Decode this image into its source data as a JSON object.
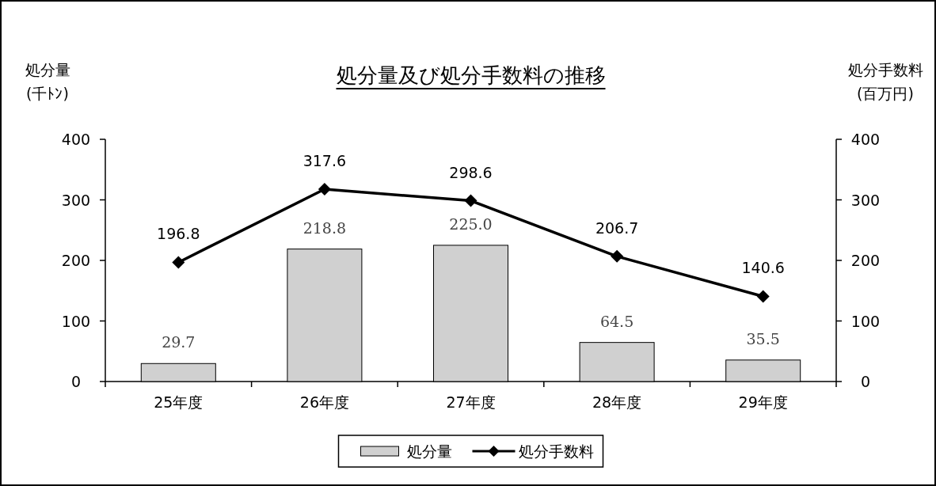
{
  "chart_data": {
    "type": "bar",
    "title": "処分量及び処分手数料の推移",
    "ylabel": "処分量(千ﾄﾝ)",
    "y2label": "処分手数料(百万円)",
    "categories": [
      "25年度",
      "26年度",
      "27年度",
      "28年度",
      "29年度"
    ],
    "series": [
      {
        "name": "処分量",
        "color": "#d0d0d0",
        "values": [
          29.7,
          218.8,
          225.0,
          64.5,
          35.5
        ],
        "value_labels": [
          "29.7",
          "218.8",
          "225.0",
          "64.5",
          "35.5"
        ]
      },
      {
        "name": "処分手数料",
        "type": "line",
        "axis": "y2",
        "color": "#000000",
        "marker": "diamond",
        "values": [
          196.8,
          317.6,
          298.6,
          206.7,
          140.6
        ],
        "value_labels": [
          "196.8",
          "317.6",
          "298.6",
          "206.7",
          "140.6"
        ]
      }
    ],
    "ylim": [
      0,
      400
    ],
    "yticks": [
      0,
      100,
      200,
      300,
      400
    ],
    "y2lim": [
      0,
      400
    ],
    "y2ticks": [
      0,
      100,
      200,
      300,
      400
    ],
    "legend": "bottom",
    "grid": false
  }
}
